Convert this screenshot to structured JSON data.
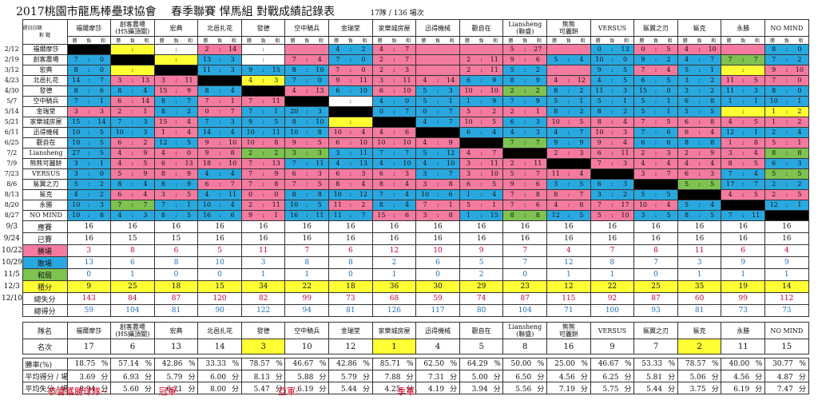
{
  "title": {
    "main": "2017桃園市龍馬棒壘球協會",
    "season": "春季聯賽 悍馬組 對戰成績記錄表",
    "count": "17隊 / 136 場次"
  },
  "corner": {
    "top": "週日日期",
    "bottom": "對    戰"
  },
  "subhead": {
    "w": "勝",
    "l": "負",
    "t": "和"
  },
  "dates": [
    "2/12",
    "2/19",
    "3/12",
    "4/23",
    "4/30",
    "5/7",
    "5/14",
    "5/21",
    "6/11",
    "6/25",
    "7/2",
    "7/9",
    "7/23",
    "8/6",
    "8/13",
    "8/20",
    "8/27",
    "9/3",
    "9/24",
    "10/22",
    "10/29",
    "11/5",
    "12/3",
    "12/10"
  ],
  "teams": [
    "福爾摩莎",
    "創客農場",
    "宏典",
    "北邑扎花",
    "發德",
    "空中騎兵",
    "金瑞堂",
    "家樂城房屋",
    "迅得機械",
    "觀自在",
    "Liansheng",
    "熊熊可麗餅",
    "VERSUS",
    "鯊翼之刃",
    "鯊克",
    "永勝",
    "NO MIND"
  ],
  "team_headers": [
    "福爾摩莎",
    "創客農場\n(HS攝頂關)",
    "宏典",
    "北邑扎花",
    "發德",
    "空中騎兵",
    "金瑞堂",
    "家樂城房屋",
    "迅得機械",
    "觀自在",
    "Liansheng\n(聯盛)",
    "熊熊\n可麗餅",
    "VERSUS",
    "鯊翼之刃",
    "鯊克",
    "永勝",
    "NO MIND"
  ],
  "matrix": [
    [
      "K",
      "Y",
      "W",
      "P:2:14",
      "W",
      "P",
      "B:4:2",
      "P:4:7",
      "P",
      "P",
      "P:5:27",
      "P",
      "B:0:13",
      "P:0:5",
      "P:4:10",
      "P",
      "B:8:0"
    ],
    [
      "B:7:0",
      "K",
      "Y",
      "B:13:3",
      "W",
      "P:7:4",
      "B:7:0",
      "P:2:7",
      "P",
      "P:2:11",
      "P:9:6",
      "B:5:4",
      "B:10:0",
      "B:9:2",
      "B:4:7",
      "G:7:7",
      "B:7:2"
    ],
    [
      "B:8:0",
      "Y",
      "K",
      "B:11:3",
      "B:9:15",
      "B:8:10",
      "P:7:0",
      "P:2:3",
      "P",
      "P:2:11",
      "B:5:2",
      "P",
      "B:9:5",
      "P:7:4",
      "B:5:1",
      "Y",
      "P:9:10"
    ],
    [
      "B:14:7",
      "P:3:13",
      "P:3:11",
      "K",
      "Y:4:3",
      "B:7:0",
      "P:9:11",
      "P:3:11",
      "P:4:14",
      "B:6:9",
      "B:8:9",
      "P:4:12",
      "B:4:5",
      "B:6:5",
      "B:3:2",
      "P:11:5",
      "P:7:0"
    ],
    [
      "B:8:6",
      "B:8:4",
      "P:15:9",
      "B:8:4",
      "K",
      "P:4:13",
      "B:6:10",
      "P:6:10",
      "B:5:3",
      "P:10:10",
      "G:2:2",
      "B:8:2",
      "B:11:3",
      "B:15:0",
      "B:3:2",
      "B:11:3",
      "B:8:0"
    ],
    [
      "B:7:1",
      "P:6:14",
      "B:8:7",
      "P:7:1",
      "P:7:11",
      "K",
      "W",
      "B:4:0",
      "B:5:1",
      "B:1:9",
      "B:7:9",
      "B:5:1",
      "B:5:1",
      "B:5:1",
      "B:6:8",
      "B:1:1",
      "B:10:1"
    ],
    [
      "P:3:3",
      "P:2:1",
      "B:8:2",
      "P:0:7",
      "B:7:1",
      "B:20:3",
      "K",
      "B:0:7",
      "B:0:7",
      "P:5:2",
      "P:2:1",
      "B:8:2",
      "B:8:2",
      "B:5:1",
      "B:5:5",
      "Y",
      "Y:1:2"
    ],
    [
      "B:15:14",
      "B:7:3",
      "P:15:4",
      "B:7:3",
      "B:9:5",
      "B:8:10",
      "Y",
      "K",
      "B:4:7",
      "P:10:5",
      "B:6:3",
      "P:10:5",
      "P:8:4",
      "P:7:5",
      "P:6:8",
      "P:4:5",
      "P:1:2"
    ],
    [
      "B:10:5",
      "B:10:3",
      "P:1:4",
      "B:14:4",
      "B:10:11",
      "B:10:8",
      "P:10:4",
      "P:4:6",
      "K",
      "B:6:4",
      "B:4:3",
      "B:4:7",
      "P:10:3",
      "B:7:6",
      "P:6:4",
      "B:12:1",
      "B:2:4"
    ],
    [
      "B:10:5",
      "P:6:2",
      "B:12:5",
      "P:9:10",
      "P:10:8",
      "P:9:5",
      "P:6:10",
      "P:10:10",
      "P:4:9",
      "K",
      "G:7:7",
      "B:9:9",
      "P:9:4",
      "B:6:6",
      "B:8:8",
      "P:1:8",
      "P:5:1"
    ],
    [
      "B:27:5",
      "P:4:9",
      "P:4:0",
      "P:9:8",
      "G:2:2",
      "G:3:3",
      "B:3:11",
      "B:7:7",
      "B:5:12",
      "P:4:7",
      "K",
      "P:2:3",
      "P:6:11",
      "P:2:3",
      "P:2:9",
      "P:3:4",
      "G:8:8"
    ],
    [
      "B:3:1",
      "P:4:5",
      "P:6:13",
      "P:18:10",
      "P:7:13",
      "B:7:11",
      "B:4:13",
      "B:4:10",
      "B:4:10",
      "P:3:11",
      "P:2:11",
      "K",
      "P:7:3",
      "P:4:4",
      "P:4:4",
      "P:8:5",
      "B:6:3"
    ],
    [
      "B:3:0",
      "P:5:9",
      "P:8:9",
      "B:4:4",
      "P:7:9",
      "P:6:3",
      "P:6:3",
      "P:6:3",
      "B:3:7",
      "P:3:10",
      "P:5:7",
      "P:11:4",
      "K",
      "P:3:7",
      "P:6:3",
      "B:7:4",
      "G:5:5"
    ],
    [
      "B:5:2",
      "B:8:4",
      "B:8:9",
      "P:6:7",
      "P:7:8",
      "P:7:5",
      "P:8:4",
      "P:8:4",
      "P:3:8",
      "P:6:5",
      "P:9:6",
      "B:3:5",
      "B:6:3",
      "K",
      "G:5:5",
      "B:17:7",
      "B:2:2"
    ],
    [
      "B:4:2",
      "P:6:4",
      "P:3:5",
      "B:4:11",
      "P:0:0",
      "B:8:8",
      "B:10:12",
      "B:7:4",
      "B:10:6",
      "B:1:4",
      "P:7:8",
      "P:8:7",
      "B:3:2",
      "B:5:5",
      "K",
      "P:4:5",
      "P:2:5"
    ],
    [
      "B:10:3",
      "G:7:7",
      "B:7:1",
      "B:10:4",
      "P:2:11",
      "B:10:5",
      "P:11:2",
      "B:8:4",
      "P:7:1",
      "P:5:1",
      "P:7:6",
      "P:4:8",
      "P:7:17",
      "P:10:4",
      "B:5:4",
      "K",
      "B:12:1"
    ],
    [
      "B:10:8",
      "B:4:3",
      "B:8:5",
      "B:16:6",
      "P:9:1",
      "B:16:11",
      "B:11:7",
      "P:15:6",
      "P:3:8",
      "B:1:15",
      "G:8:8",
      "B:12:5",
      "P:5:10",
      "B:3:5",
      "B:8:5",
      "B:7:11",
      "K"
    ]
  ],
  "summary": {
    "labels": [
      "應賽",
      "已賽",
      "勝場",
      "敗場",
      "和局",
      "積分",
      "總失分",
      "總得分"
    ],
    "rows": [
      [
        "16",
        "16",
        "16",
        "16",
        "16",
        "16",
        "16",
        "16",
        "16",
        "16",
        "16",
        "16",
        "16",
        "16",
        "16",
        "16",
        "16"
      ],
      [
        "16",
        "15",
        "15",
        "16",
        "16",
        "16",
        "16",
        "16",
        "16",
        "16",
        "16",
        "16",
        "16",
        "16",
        "16",
        "16",
        "16"
      ],
      [
        "3",
        "8",
        "6",
        "5",
        "11",
        "7",
        "6",
        "12",
        "10",
        "9",
        "7",
        "4",
        "7",
        "8",
        "11",
        "6",
        "4"
      ],
      [
        "13",
        "6",
        "8",
        "10",
        "3",
        "8",
        "8",
        "2",
        "6",
        "5",
        "7",
        "12",
        "8",
        "7",
        "3",
        "9",
        "9"
      ],
      [
        "0",
        "1",
        "0",
        "0",
        "1",
        "1",
        "0",
        "1",
        "0",
        "2",
        "0",
        "1",
        "1",
        "0",
        "1",
        "1",
        "1"
      ],
      [
        "9",
        "25",
        "18",
        "15",
        "34",
        "22",
        "18",
        "36",
        "30",
        "29",
        "23",
        "12",
        "22",
        "25",
        "35",
        "19",
        "14"
      ],
      [
        "143",
        "84",
        "87",
        "120",
        "82",
        "99",
        "73",
        "68",
        "59",
        "74",
        "87",
        "115",
        "92",
        "87",
        "60",
        "99",
        "112"
      ],
      [
        "59",
        "104",
        "81",
        "90",
        "122",
        "94",
        "81",
        "126",
        "117",
        "80",
        "104",
        "71",
        "100",
        "93",
        "81",
        "73",
        "73"
      ]
    ]
  },
  "rank": {
    "team_label": "隊名",
    "place_label": "名次",
    "places": [
      "17",
      "6",
      "13",
      "14",
      "3",
      "10",
      "12",
      "1",
      "4",
      "5",
      "8",
      "16",
      "9",
      "7",
      "2",
      "11",
      "15"
    ]
  },
  "stats": {
    "labels": [
      "勝率(%)",
      "平均得分 / 場",
      "平均失分 / 場"
    ],
    "unit_pct": "%",
    "unit_pts": "分",
    "win_rate": [
      "18.75",
      "57.14",
      "42.86",
      "33.33",
      "78.57",
      "46.67",
      "42.86",
      "85.71",
      "62.50",
      "64.29",
      "50.00",
      "25.00",
      "46.67",
      "53.33",
      "78.57",
      "40.00",
      "30.77"
    ],
    "avg_for": [
      "3.69",
      "6.93",
      "5.79",
      "6.00",
      "8.13",
      "5.88",
      "5.79",
      "7.88",
      "7.31",
      "5.00",
      "6.50",
      "4.56",
      "6.25",
      "5.81",
      "5.06",
      "4.56",
      "4.87"
    ],
    "avg_against": [
      "8.94",
      "5.60",
      "6.21",
      "8.00",
      "5.47",
      "6.19",
      "5.44",
      "4.25",
      "4.19",
      "3.94",
      "5.56",
      "7.19",
      "5.75",
      "5.44",
      "3.75",
      "6.19",
      "7.47"
    ]
  },
  "footer": {
    "congrats": "恭喜獲勝球隊~",
    "champion": "冠軍:",
    "runner_up": "亞軍:",
    "third": "季軍:"
  },
  "colors": {
    "pink": "#f47aa0",
    "blue": "#29a8e0",
    "green": "#7ec252",
    "yellow": "#ffff33",
    "black": "#000000"
  }
}
